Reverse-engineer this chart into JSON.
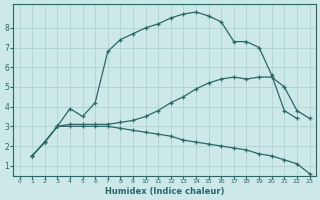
{
  "bg_color": "#cce8e8",
  "grid_color": "#aacfcf",
  "line_color": "#2a6868",
  "xlabel": "Humidex (Indice chaleur)",
  "xlim": [
    -0.5,
    23.5
  ],
  "ylim": [
    0.5,
    9.2
  ],
  "xticks": [
    0,
    1,
    2,
    3,
    4,
    5,
    6,
    7,
    8,
    9,
    10,
    11,
    12,
    13,
    14,
    15,
    16,
    17,
    18,
    19,
    20,
    21,
    22,
    23
  ],
  "yticks": [
    1,
    2,
    3,
    4,
    5,
    6,
    7,
    8
  ],
  "line1_x": [
    1,
    2,
    3,
    4,
    5,
    6,
    7,
    8,
    9,
    10,
    11,
    12,
    13,
    14,
    15,
    16,
    17,
    18,
    19,
    20,
    21,
    22
  ],
  "line1_y": [
    1.5,
    2.2,
    3.0,
    3.9,
    3.5,
    4.2,
    6.8,
    7.4,
    7.7,
    8.0,
    8.2,
    8.5,
    8.7,
    8.8,
    8.6,
    8.3,
    7.3,
    7.3,
    7.0,
    5.6,
    3.8,
    3.4
  ],
  "line2_x": [
    1,
    2,
    3,
    4,
    5,
    6,
    7,
    8,
    9,
    10,
    11,
    12,
    13,
    14,
    15,
    16,
    17,
    18,
    19,
    20,
    21,
    22,
    23
  ],
  "line2_y": [
    1.5,
    2.2,
    3.0,
    3.1,
    3.1,
    3.1,
    3.1,
    3.2,
    3.3,
    3.5,
    3.8,
    4.2,
    4.5,
    4.9,
    5.2,
    5.4,
    5.5,
    5.4,
    5.5,
    5.5,
    5.0,
    3.8,
    3.4
  ],
  "line3_x": [
    1,
    2,
    3,
    4,
    5,
    6,
    7,
    8,
    9,
    10,
    11,
    12,
    13,
    14,
    15,
    16,
    17,
    18,
    19,
    20,
    21,
    22,
    23
  ],
  "line3_y": [
    1.5,
    2.2,
    3.0,
    3.0,
    3.0,
    3.0,
    3.0,
    2.9,
    2.8,
    2.7,
    2.6,
    2.5,
    2.3,
    2.2,
    2.1,
    2.0,
    1.9,
    1.8,
    1.6,
    1.5,
    1.3,
    1.1,
    0.6
  ]
}
